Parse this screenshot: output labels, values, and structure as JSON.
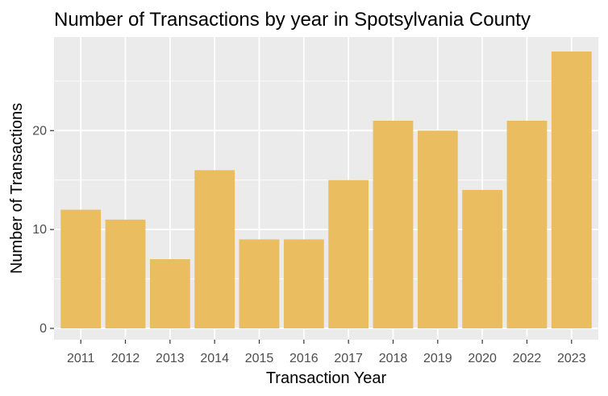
{
  "chart_data": {
    "type": "bar",
    "title": "Number of Transactions by year in Spotsylvania County",
    "xlabel": "Transaction Year",
    "ylabel": "Number of Transactions",
    "categories": [
      "2011",
      "2012",
      "2013",
      "2014",
      "2015",
      "2016",
      "2017",
      "2018",
      "2019",
      "2020",
      "2022",
      "2023"
    ],
    "values": [
      12,
      11,
      7,
      16,
      9,
      9,
      15,
      21,
      20,
      14,
      21,
      28
    ],
    "yticks": [
      0,
      10,
      20
    ],
    "ylim": [
      0,
      29.4
    ],
    "grid": true,
    "legend": "none",
    "colors": {
      "bar": "#E9BD60",
      "panel_background": "#EBEBEB",
      "grid_major": "#FFFFFF",
      "tick": "#333333"
    }
  }
}
